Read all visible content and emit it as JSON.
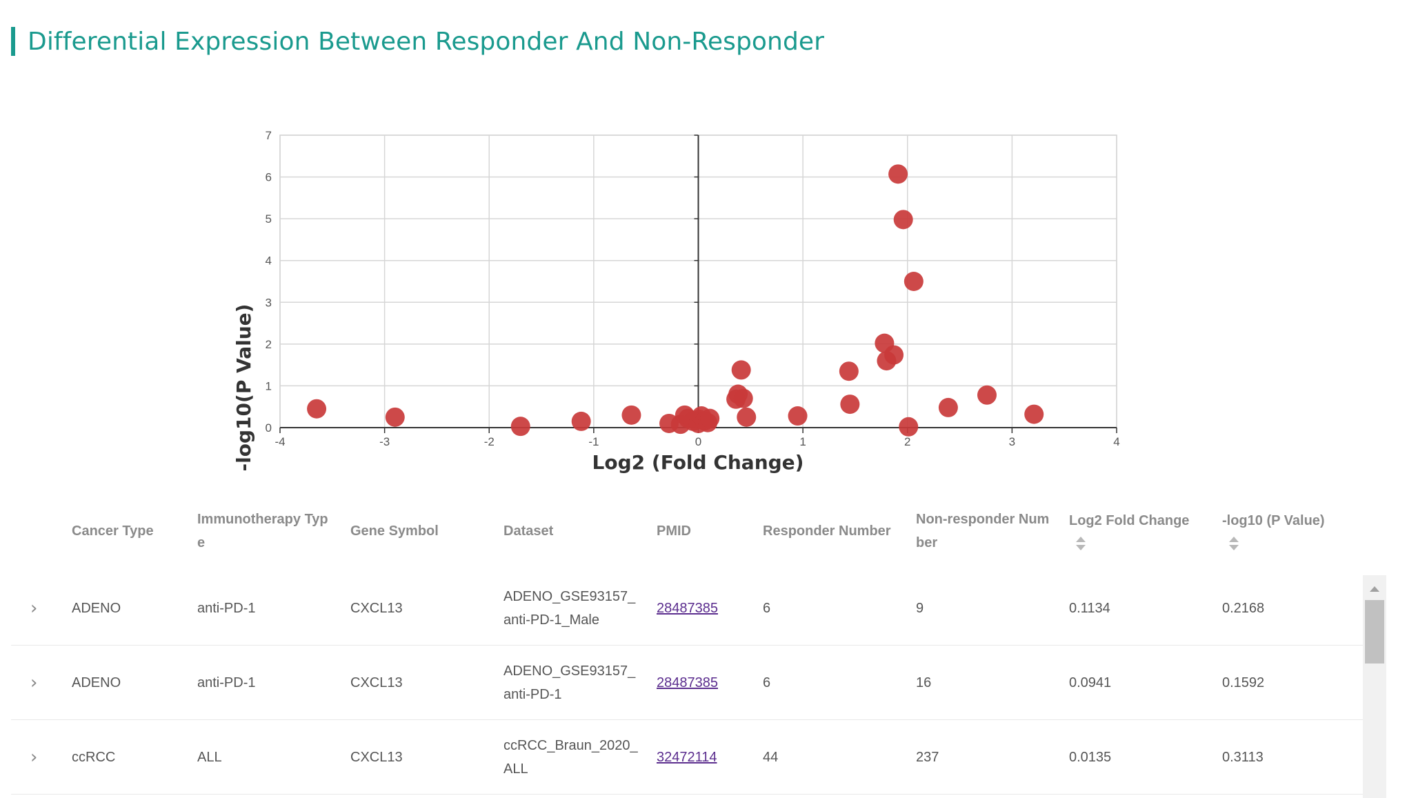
{
  "section": {
    "title": "Differential Expression Between Responder And Non-Responder",
    "accent_color": "#1a9a8e"
  },
  "chart_data": {
    "type": "scatter",
    "title": "",
    "xlabel": "Log2 (Fold Change)",
    "ylabel": "-log10(P Value)",
    "xlim": [
      -4,
      4
    ],
    "ylim": [
      0,
      7
    ],
    "x_ticks": [
      -4,
      -3,
      -2,
      -1,
      0,
      1,
      2,
      3,
      4
    ],
    "y_ticks": [
      0,
      1,
      2,
      3,
      4,
      5,
      6,
      7
    ],
    "grid": true,
    "marker_color": "#c9393a",
    "points": [
      {
        "x": -3.65,
        "y": 0.45
      },
      {
        "x": -2.9,
        "y": 0.25
      },
      {
        "x": -1.7,
        "y": 0.03
      },
      {
        "x": -1.12,
        "y": 0.15
      },
      {
        "x": -0.64,
        "y": 0.3
      },
      {
        "x": -0.28,
        "y": 0.1
      },
      {
        "x": -0.17,
        "y": 0.08
      },
      {
        "x": -0.13,
        "y": 0.3
      },
      {
        "x": -0.1,
        "y": 0.22
      },
      {
        "x": -0.05,
        "y": 0.15
      },
      {
        "x": 0.0,
        "y": 0.1
      },
      {
        "x": 0.01,
        "y": 0.2
      },
      {
        "x": 0.03,
        "y": 0.28
      },
      {
        "x": 0.06,
        "y": 0.16
      },
      {
        "x": 0.09,
        "y": 0.12
      },
      {
        "x": 0.11,
        "y": 0.22
      },
      {
        "x": 0.36,
        "y": 0.68
      },
      {
        "x": 0.38,
        "y": 0.8
      },
      {
        "x": 0.41,
        "y": 1.38
      },
      {
        "x": 0.43,
        "y": 0.7
      },
      {
        "x": 0.46,
        "y": 0.25
      },
      {
        "x": 0.95,
        "y": 0.28
      },
      {
        "x": 1.44,
        "y": 1.35
      },
      {
        "x": 1.45,
        "y": 0.56
      },
      {
        "x": 1.78,
        "y": 2.02
      },
      {
        "x": 1.8,
        "y": 1.6
      },
      {
        "x": 1.87,
        "y": 1.74
      },
      {
        "x": 1.91,
        "y": 6.07
      },
      {
        "x": 1.96,
        "y": 4.98
      },
      {
        "x": 2.01,
        "y": 0.02
      },
      {
        "x": 2.06,
        "y": 3.5
      },
      {
        "x": 2.39,
        "y": 0.48
      },
      {
        "x": 2.76,
        "y": 0.78
      },
      {
        "x": 3.21,
        "y": 0.32
      }
    ]
  },
  "table": {
    "columns": [
      {
        "label": "Cancer Type",
        "sortable": false
      },
      {
        "label": "Immunotherapy Type",
        "sortable": false
      },
      {
        "label": "Gene Symbol",
        "sortable": false
      },
      {
        "label": "Dataset",
        "sortable": false
      },
      {
        "label": "PMID",
        "sortable": false
      },
      {
        "label": "Responder Number",
        "sortable": false
      },
      {
        "label": "Non-responder Number",
        "sortable": false
      },
      {
        "label": "Log2 Fold Change",
        "sortable": true
      },
      {
        "label": "-log10 (P Value)",
        "sortable": true
      }
    ],
    "expand_glyph": "›",
    "rows": [
      {
        "cancer_type": "ADENO",
        "immunotherapy_type": "anti-PD-1",
        "gene_symbol": "CXCL13",
        "dataset": "ADENO_GSE93157_anti-PD-1_Male",
        "pmid": "28487385",
        "responder_number": "6",
        "nonresponder_number": "9",
        "log2fc": "0.1134",
        "neglog10p": "0.2168"
      },
      {
        "cancer_type": "ADENO",
        "immunotherapy_type": "anti-PD-1",
        "gene_symbol": "CXCL13",
        "dataset": "ADENO_GSE93157_anti-PD-1",
        "pmid": "28487385",
        "responder_number": "6",
        "nonresponder_number": "16",
        "log2fc": "0.0941",
        "neglog10p": "0.1592"
      },
      {
        "cancer_type": "ccRCC",
        "immunotherapy_type": "ALL",
        "gene_symbol": "CXCL13",
        "dataset": "ccRCC_Braun_2020_ALL",
        "pmid": "32472114",
        "responder_number": "44",
        "nonresponder_number": "237",
        "log2fc": "0.0135",
        "neglog10p": "0.3113"
      }
    ]
  }
}
